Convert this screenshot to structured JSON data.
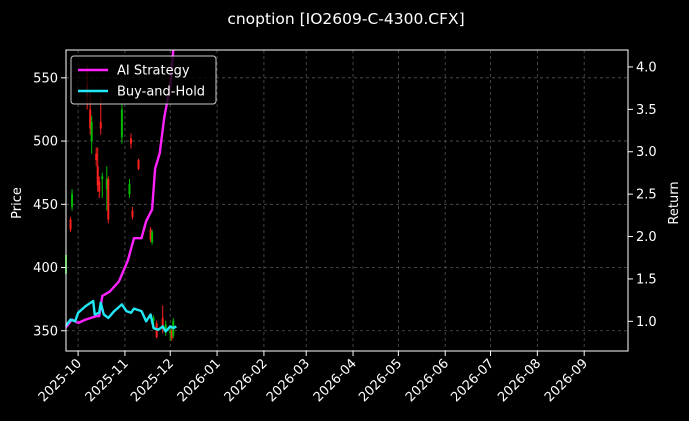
{
  "chart_data": {
    "type": "line",
    "title": "cnoption [IO2609-C-4300.CFX]",
    "ylabel": "Price",
    "y2label": "Return",
    "background": "#000000",
    "grid": true,
    "legend_placement": "top-left",
    "x_ticks": [
      "2025-10",
      "2025-11",
      "2025-12",
      "2026-01",
      "2026-02",
      "2026-03",
      "2026-04",
      "2026-05",
      "2026-06",
      "2026-07",
      "2026-08",
      "2026-09"
    ],
    "x_range": [
      "2025-09-23",
      "2026-09-30"
    ],
    "y_left": {
      "min": 334,
      "max": 572,
      "ticks": [
        350,
        400,
        450,
        500,
        550
      ]
    },
    "y_right": {
      "min": 0.65,
      "max": 4.2,
      "ticks": [
        "1.0",
        "1.5",
        "2.0",
        "2.5",
        "3.0",
        "3.5",
        "4.0"
      ]
    },
    "candles": [
      {
        "date": "2025-09-23",
        "open": 395,
        "high": 420,
        "low": 380,
        "close": 410,
        "dir": "up"
      },
      {
        "date": "2025-09-26",
        "open": 438,
        "high": 440,
        "low": 428,
        "close": 430,
        "dir": "down"
      },
      {
        "date": "2025-09-27",
        "open": 448,
        "high": 462,
        "low": 445,
        "close": 458,
        "dir": "up"
      },
      {
        "date": "2025-10-07",
        "open": 545,
        "high": 560,
        "low": 525,
        "close": 535,
        "dir": "down"
      },
      {
        "date": "2025-10-09",
        "open": 525,
        "high": 540,
        "low": 505,
        "close": 510,
        "dir": "down"
      },
      {
        "date": "2025-10-10",
        "open": 500,
        "high": 520,
        "low": 490,
        "close": 515,
        "dir": "up"
      },
      {
        "date": "2025-10-13",
        "open": 490,
        "high": 495,
        "low": 480,
        "close": 485,
        "dir": "down"
      },
      {
        "date": "2025-10-14",
        "open": 480,
        "high": 495,
        "low": 460,
        "close": 465,
        "dir": "down"
      },
      {
        "date": "2025-10-15",
        "open": 468,
        "high": 472,
        "low": 455,
        "close": 460,
        "dir": "down"
      },
      {
        "date": "2025-10-16",
        "open": 515,
        "high": 535,
        "low": 505,
        "close": 510,
        "dir": "down"
      },
      {
        "date": "2025-10-17",
        "open": 470,
        "high": 475,
        "low": 455,
        "close": 472,
        "dir": "up"
      },
      {
        "date": "2025-10-20",
        "open": 462,
        "high": 480,
        "low": 445,
        "close": 470,
        "dir": "up"
      },
      {
        "date": "2025-10-21",
        "open": 470,
        "high": 472,
        "low": 435,
        "close": 438,
        "dir": "down"
      },
      {
        "date": "2025-10-30",
        "open": 503,
        "high": 530,
        "low": 498,
        "close": 525,
        "dir": "up"
      },
      {
        "date": "2025-11-04",
        "open": 458,
        "high": 470,
        "low": 455,
        "close": 466,
        "dir": "up"
      },
      {
        "date": "2025-11-05",
        "open": 502,
        "high": 506,
        "low": 494,
        "close": 498,
        "dir": "down"
      },
      {
        "date": "2025-11-06",
        "open": 445,
        "high": 448,
        "low": 438,
        "close": 440,
        "dir": "down"
      },
      {
        "date": "2025-11-10",
        "open": 485,
        "high": 486,
        "low": 477,
        "close": 478,
        "dir": "down"
      },
      {
        "date": "2025-11-18",
        "open": 430,
        "high": 432,
        "low": 420,
        "close": 422,
        "dir": "down"
      },
      {
        "date": "2025-11-19",
        "open": 420,
        "high": 430,
        "low": 418,
        "close": 428,
        "dir": "up"
      },
      {
        "date": "2025-11-20",
        "open": 358,
        "high": 362,
        "low": 352,
        "close": 360,
        "dir": "up"
      },
      {
        "date": "2025-11-22",
        "open": 356,
        "high": 358,
        "low": 344,
        "close": 345,
        "dir": "down"
      },
      {
        "date": "2025-11-26",
        "open": 360,
        "high": 370,
        "low": 348,
        "close": 352,
        "dir": "down"
      },
      {
        "date": "2025-11-28",
        "open": 350,
        "high": 358,
        "low": 346,
        "close": 355,
        "dir": "up"
      },
      {
        "date": "2025-12-01",
        "open": 348,
        "high": 354,
        "low": 342,
        "close": 350,
        "dir": "up"
      },
      {
        "date": "2025-12-02",
        "open": 350,
        "high": 352,
        "low": 342,
        "close": 344,
        "dir": "down"
      },
      {
        "date": "2025-12-03",
        "open": 346,
        "high": 360,
        "low": 344,
        "close": 358,
        "dir": "up"
      }
    ],
    "series": [
      {
        "name": "AI Strategy",
        "color": "#ff22ff",
        "axis": "right",
        "points": [
          {
            "date": "2025-09-23",
            "value": 0.93
          },
          {
            "date": "2025-09-27",
            "value": 1.02
          },
          {
            "date": "2025-10-01",
            "value": 0.98
          },
          {
            "date": "2025-10-06",
            "value": 1.02
          },
          {
            "date": "2025-10-13",
            "value": 1.06
          },
          {
            "date": "2025-10-15",
            "value": 1.06
          },
          {
            "date": "2025-10-17",
            "value": 1.3
          },
          {
            "date": "2025-10-22",
            "value": 1.35
          },
          {
            "date": "2025-10-28",
            "value": 1.47
          },
          {
            "date": "2025-11-03",
            "value": 1.72
          },
          {
            "date": "2025-11-07",
            "value": 1.98
          },
          {
            "date": "2025-11-12",
            "value": 1.98
          },
          {
            "date": "2025-11-15",
            "value": 2.18
          },
          {
            "date": "2025-11-19",
            "value": 2.32
          },
          {
            "date": "2025-11-21",
            "value": 2.8
          },
          {
            "date": "2025-11-24",
            "value": 2.98
          },
          {
            "date": "2025-11-27",
            "value": 3.4
          },
          {
            "date": "2025-12-01",
            "value": 3.78
          },
          {
            "date": "2025-12-03",
            "value": 4.2
          }
        ]
      },
      {
        "name": "Buy-and-Hold",
        "color": "#22e8f5",
        "axis": "right",
        "points": [
          {
            "date": "2025-09-23",
            "value": 0.95
          },
          {
            "date": "2025-09-26",
            "value": 1.02
          },
          {
            "date": "2025-09-29",
            "value": 1.0
          },
          {
            "date": "2025-10-01",
            "value": 1.1
          },
          {
            "date": "2025-10-06",
            "value": 1.18
          },
          {
            "date": "2025-10-11",
            "value": 1.24
          },
          {
            "date": "2025-10-12",
            "value": 1.08
          },
          {
            "date": "2025-10-15",
            "value": 1.1
          },
          {
            "date": "2025-10-16",
            "value": 1.22
          },
          {
            "date": "2025-10-18",
            "value": 1.08
          },
          {
            "date": "2025-10-21",
            "value": 1.04
          },
          {
            "date": "2025-10-25",
            "value": 1.12
          },
          {
            "date": "2025-10-30",
            "value": 1.2
          },
          {
            "date": "2025-11-02",
            "value": 1.12
          },
          {
            "date": "2025-11-05",
            "value": 1.1
          },
          {
            "date": "2025-11-07",
            "value": 1.15
          },
          {
            "date": "2025-11-12",
            "value": 1.12
          },
          {
            "date": "2025-11-15",
            "value": 1.0
          },
          {
            "date": "2025-11-18",
            "value": 1.08
          },
          {
            "date": "2025-11-20",
            "value": 0.92
          },
          {
            "date": "2025-11-23",
            "value": 0.9
          },
          {
            "date": "2025-11-26",
            "value": 0.94
          },
          {
            "date": "2025-11-28",
            "value": 0.88
          },
          {
            "date": "2025-12-01",
            "value": 0.94
          },
          {
            "date": "2025-12-03",
            "value": 0.92
          },
          {
            "date": "2025-12-05",
            "value": 0.94
          }
        ]
      }
    ],
    "colors": {
      "up_candle": "#00bb00",
      "down_candle": "#ff2020",
      "axes": "#ffffff",
      "grid": "#555555"
    }
  }
}
